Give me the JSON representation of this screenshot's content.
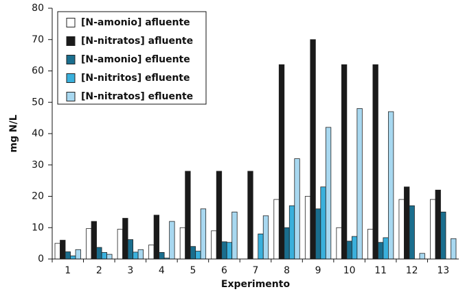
{
  "chart_data": {
    "type": "bar",
    "x_label": "Experimento",
    "y_label": "mg N/L",
    "categories": [
      "1",
      "2",
      "3",
      "4",
      "5",
      "6",
      "7",
      "8",
      "9",
      "10",
      "11",
      "12",
      "13"
    ],
    "series": [
      {
        "name": "[N-amonio] afluente",
        "color": "#ffffff",
        "values": [
          5,
          9.7,
          9.5,
          4.5,
          10,
          9,
          0,
          19,
          20,
          10,
          9.5,
          19,
          19
        ]
      },
      {
        "name": "[N-nitratos] afluente",
        "color": "#1a1a1a",
        "values": [
          6,
          12,
          13,
          14,
          28,
          28,
          28,
          62,
          70,
          62,
          62,
          23,
          22
        ]
      },
      {
        "name": "[N-amonio] efluente",
        "color": "#1a6e8e",
        "values": [
          2.3,
          3.7,
          6.2,
          2.1,
          4,
          5.5,
          0,
          10,
          16,
          5.7,
          5.3,
          17,
          15
        ]
      },
      {
        "name": "[N-nitritos] efluente",
        "color": "#3ab0dc",
        "values": [
          1,
          2.1,
          2.2,
          0.3,
          2.5,
          5.3,
          8,
          17,
          23,
          7.2,
          6.8,
          0,
          0
        ]
      },
      {
        "name": "[N-nitratos] efluente",
        "color": "#a8d8f0",
        "values": [
          3,
          1.5,
          3,
          12,
          16,
          15,
          13.8,
          32,
          42,
          48,
          47,
          1.8,
          6.5
        ]
      }
    ],
    "ylim": [
      0,
      80
    ],
    "yticks": [
      0,
      10,
      20,
      30,
      40,
      50,
      60,
      70,
      80
    ]
  }
}
